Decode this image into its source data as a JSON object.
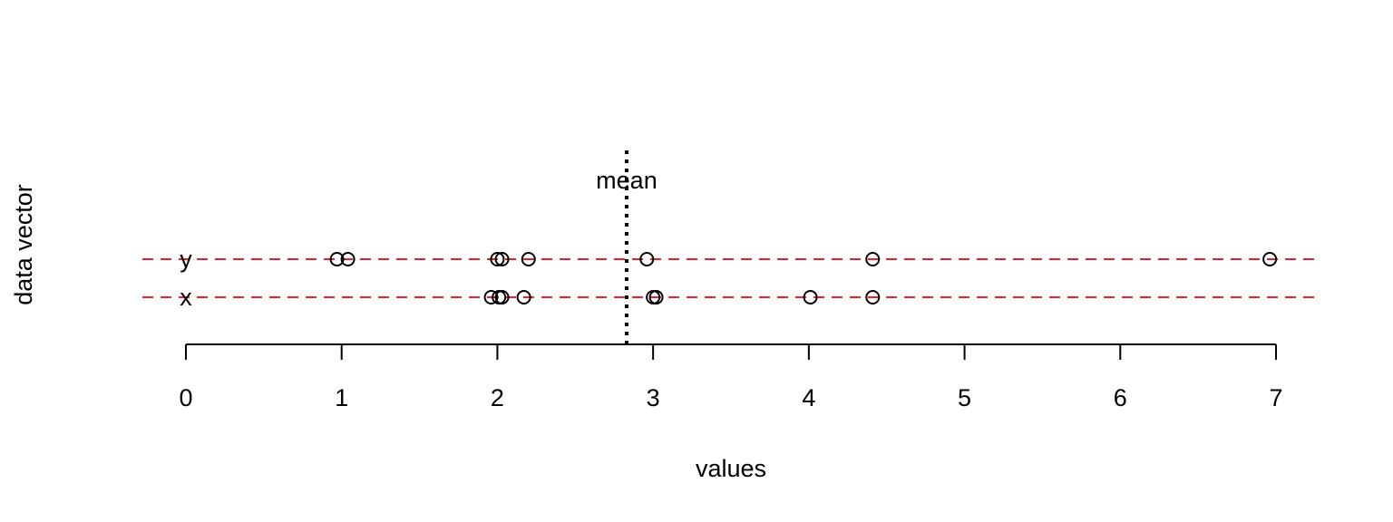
{
  "chart_data": {
    "type": "scatter",
    "title": "",
    "xlabel": "values",
    "ylabel": "data vector",
    "xlim": [
      0,
      7
    ],
    "x_ticks": [
      "0",
      "1",
      "2",
      "3",
      "4",
      "5",
      "6",
      "7"
    ],
    "grid": false,
    "series": [
      {
        "name": "y",
        "values": [
          0.97,
          1.04,
          2.0,
          2.03,
          2.2,
          2.96,
          4.41,
          6.96
        ]
      },
      {
        "name": "x",
        "values": [
          1.96,
          2.01,
          2.03,
          2.17,
          3.0,
          3.02,
          4.01,
          4.41
        ]
      }
    ],
    "reference_line": {
      "label": "mean",
      "value": 2.83,
      "style": "dotted"
    },
    "series_line_style": "dashed",
    "colors": {
      "series_line": "#e8202a",
      "points": "#000000",
      "reference": "#000000",
      "axis": "#000000"
    }
  }
}
